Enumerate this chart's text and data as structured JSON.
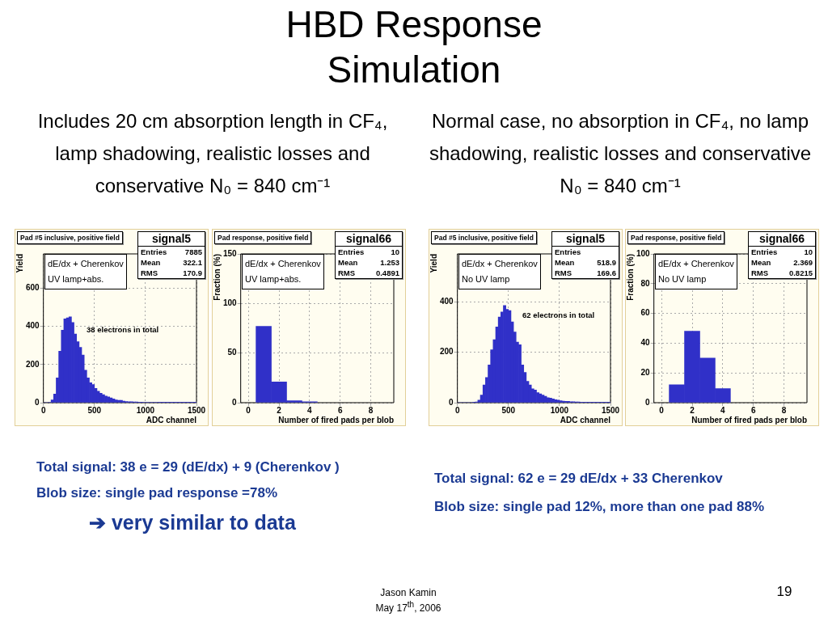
{
  "chart_data": [
    {
      "type": "other",
      "title": "HBD Response Simulation",
      "annotations": [
        "Includes 20 cm absorption length in CF₄,  lamp shadowing, realistic losses and conservative N₀ = 840 cm⁻¹",
        "Normal case, no absorption  in CF₄, no lamp shadowing, realistic losses and conservative N₀ = 840 cm⁻¹",
        "Total signal: 38 e = 29 (dE/dx)  + 9 (Cherenkov )",
        "Blob size: single pad response =78%",
        "➔ very similar to data",
        "Total signal: 62 e = 29 dE/dx  + 33 Cherenkov",
        "Blob size: single pad 12%, more than one pad 88%",
        "Jason Kamin",
        "May 17$^{th}$, 2006",
        "19"
      ]
    },
    {
      "type": "histogram",
      "title": "Pad #5 inclusive, positive field",
      "xlabel": "ADC channel",
      "ylabel": "Yield",
      "color": "#3030c8",
      "xlim": [
        0,
        1500
      ],
      "ylim": [
        0,
        780
      ],
      "xticks": [
        0,
        500,
        1000,
        1500
      ],
      "yticks": [
        0,
        200,
        400,
        600
      ],
      "grid": true,
      "bins": [
        0,
        25,
        50,
        75,
        100,
        125,
        150,
        175,
        200,
        225,
        250,
        275,
        300,
        325,
        350,
        375,
        400,
        425,
        450,
        475,
        500,
        525,
        550,
        575,
        600,
        625,
        650,
        675,
        700,
        725,
        750,
        775,
        800,
        825,
        850,
        875,
        900,
        925,
        950,
        975,
        1000,
        1025,
        1050,
        1075,
        1100,
        1125,
        1150,
        1175,
        1200,
        1225,
        1250,
        1275,
        1300,
        1325,
        1350,
        1375,
        1400,
        1425,
        1450,
        1475,
        1500
      ],
      "values": [
        0,
        0,
        2,
        15,
        45,
        130,
        270,
        380,
        440,
        445,
        450,
        420,
        360,
        320,
        290,
        250,
        170,
        130,
        105,
        95,
        75,
        60,
        50,
        42,
        35,
        30,
        25,
        20,
        15,
        12,
        12,
        8,
        6,
        5,
        5,
        4,
        4,
        3,
        3,
        2,
        2,
        2,
        2,
        2,
        2,
        1,
        1,
        1,
        1,
        1,
        1,
        1,
        1,
        1,
        1,
        1,
        1,
        1,
        1,
        1
      ],
      "annotations": [
        "signal5",
        "Entries",
        "7885",
        "Mean",
        "322.1",
        "RMS",
        "170.9",
        "dE/dx + Cherenkov",
        "UV lamp+abs.",
        "38 electrons in total"
      ]
    },
    {
      "type": "histogram",
      "title": "Pad response, positive field",
      "xlabel": "Number of fired pads per blob",
      "ylabel": "Fraction (%)",
      "color": "#3030c8",
      "xlim": [
        -0.5,
        9.5
      ],
      "ylim": [
        0,
        150
      ],
      "xticks": [
        0,
        2,
        4,
        6,
        8
      ],
      "yticks": [
        0,
        50,
        100,
        150
      ],
      "grid": true,
      "bins": [
        0.5,
        1.5,
        2.5,
        3.5,
        4.5
      ],
      "values": [
        77,
        21,
        2,
        1
      ],
      "annotations": [
        "signal66",
        "Entries",
        "10",
        "Mean",
        "1.253",
        "RMS",
        "0.4891",
        "dE/dx + Cherenkov",
        "UV lamp+abs."
      ]
    },
    {
      "type": "histogram",
      "title": "Pad #5 inclusive, positive field",
      "xlabel": "ADC channel",
      "ylabel": "Yield",
      "color": "#3030c8",
      "xlim": [
        0,
        1500
      ],
      "ylim": [
        0,
        590
      ],
      "xticks": [
        0,
        500,
        1000,
        1500
      ],
      "yticks": [
        0,
        200,
        400
      ],
      "grid": true,
      "bins": [
        0,
        25,
        50,
        75,
        100,
        125,
        150,
        175,
        200,
        225,
        250,
        275,
        300,
        325,
        350,
        375,
        400,
        425,
        450,
        475,
        500,
        525,
        550,
        575,
        600,
        625,
        650,
        675,
        700,
        725,
        750,
        775,
        800,
        825,
        850,
        875,
        900,
        925,
        950,
        975,
        1000,
        1025,
        1050,
        1075,
        1100,
        1125,
        1150,
        1175,
        1200,
        1225,
        1250,
        1275,
        1300,
        1325,
        1350,
        1375,
        1400,
        1425,
        1450,
        1475,
        1500
      ],
      "values": [
        0,
        0,
        0,
        0,
        0,
        0,
        1,
        3,
        10,
        30,
        70,
        100,
        150,
        210,
        250,
        300,
        340,
        360,
        385,
        370,
        365,
        320,
        280,
        240,
        230,
        150,
        120,
        85,
        70,
        55,
        50,
        40,
        35,
        30,
        25,
        20,
        18,
        15,
        12,
        10,
        8,
        6,
        5,
        5,
        4,
        4,
        3,
        3,
        2,
        2,
        2,
        2,
        1,
        1,
        1,
        1,
        1,
        1,
        1,
        1
      ],
      "annotations": [
        "signal5",
        "Entries",
        null,
        "Mean",
        "518.9",
        "RMS",
        "169.6",
        "dE/dx + Cherenkov",
        "No UV lamp",
        "62 electrons in total"
      ]
    },
    {
      "type": "histogram",
      "title": "Pad response, positive field",
      "xlabel": "Number of fired pads per blob",
      "ylabel": "Fraction (%)",
      "color": "#3030c8",
      "xlim": [
        -0.5,
        9.5
      ],
      "ylim": [
        0,
        100
      ],
      "xticks": [
        0,
        2,
        4,
        6,
        8
      ],
      "yticks": [
        0,
        20,
        40,
        60,
        80,
        100
      ],
      "grid": true,
      "bins": [
        0.5,
        1.5,
        2.5,
        3.5,
        4.5
      ],
      "values": [
        12,
        48,
        30,
        9.5
      ],
      "annotations": [
        "signal66",
        "Entries",
        "10",
        "Mean",
        "2.369",
        "RMS",
        "0.8215",
        "dE/dx + Cherenkov",
        "No UV lamp"
      ]
    }
  ]
}
